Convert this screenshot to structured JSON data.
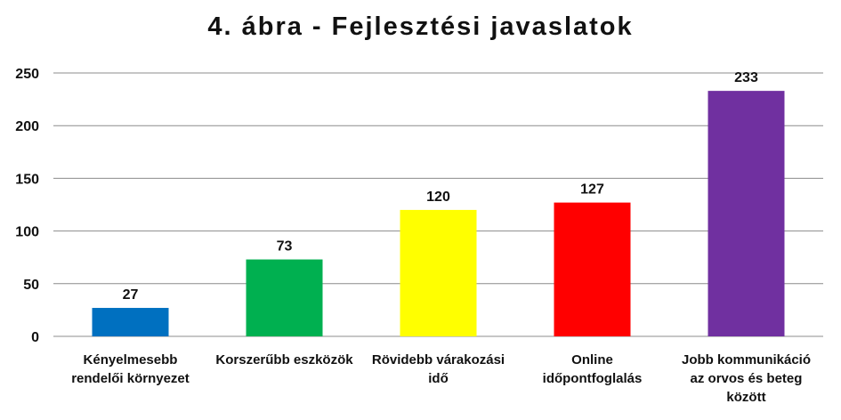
{
  "chart_data": {
    "type": "bar",
    "title": "4. ábra - Fejlesztési javaslatok",
    "categories": [
      [
        "Kényelmesebb",
        "rendelői környezet"
      ],
      [
        "Korszerűbb eszközök"
      ],
      [
        "Rövidebb várakozási",
        "idő"
      ],
      [
        "Online",
        "időpontfoglalás"
      ],
      [
        "Jobb kommunikáció",
        "az orvos és beteg",
        "között"
      ]
    ],
    "values": [
      27,
      73,
      120,
      127,
      233
    ],
    "bar_colors": [
      "#0070c0",
      "#00b050",
      "#ffff00",
      "#ff0000",
      "#7030a0"
    ],
    "data_labels": true,
    "ylim": [
      0,
      250
    ],
    "yticks": [
      0,
      50,
      100,
      150,
      200,
      250
    ],
    "grid": true,
    "legend": "none",
    "xlabel": "",
    "ylabel": ""
  }
}
